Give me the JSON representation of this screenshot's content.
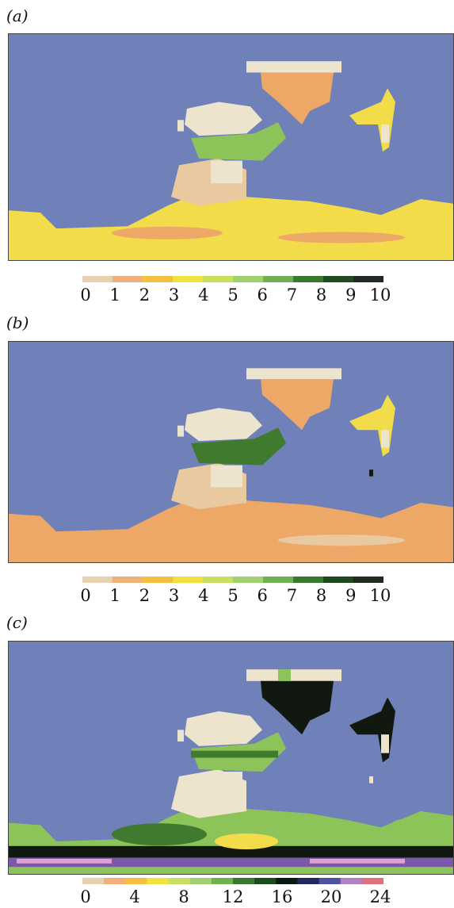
{
  "chart_data": [
    {
      "type": "heatmap",
      "panel_label": "(a)",
      "colorbar": {
        "tick_labels": [
          "0",
          "1",
          "2",
          "3",
          "4",
          "5",
          "6",
          "7",
          "8",
          "9",
          "10"
        ],
        "range": [
          0,
          10
        ],
        "colors": [
          "#e6d2b0",
          "#f0b07a",
          "#f5c040",
          "#f0e040",
          "#c8e060",
          "#a0d070",
          "#70b050",
          "#3a7a30",
          "#1e4a20",
          "#202a20"
        ]
      },
      "background_color": "#7080b8"
    },
    {
      "type": "heatmap",
      "panel_label": "(b)",
      "colorbar": {
        "tick_labels": [
          "0",
          "1",
          "2",
          "3",
          "4",
          "5",
          "6",
          "7",
          "8",
          "9",
          "10"
        ],
        "range": [
          0,
          10
        ],
        "colors": [
          "#e6d2b0",
          "#f0b07a",
          "#f5c040",
          "#f0e040",
          "#c8e060",
          "#a0d070",
          "#70b050",
          "#3a7a30",
          "#1e4a20",
          "#202a20"
        ]
      },
      "background_color": "#7080b8"
    },
    {
      "type": "heatmap",
      "panel_label": "(c)",
      "colorbar": {
        "tick_labels": [
          "0",
          "4",
          "8",
          "12",
          "16",
          "20",
          "24"
        ],
        "range": [
          0,
          24
        ],
        "colors": [
          "#e6d2b0",
          "#f0b07a",
          "#f5c040",
          "#f0e040",
          "#c8e060",
          "#a0d070",
          "#70b050",
          "#3a7a30",
          "#1e4a20",
          "#0a1a10",
          "#202860",
          "#5050a0",
          "#b080c0",
          "#e07080"
        ]
      },
      "background_color": "#7080b8"
    }
  ]
}
